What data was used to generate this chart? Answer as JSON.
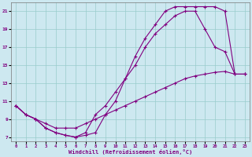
{
  "xlabel": "Windchill (Refroidissement éolien,°C)",
  "bg_color": "#cde8f0",
  "line_color": "#800080",
  "grid_color": "#99cccc",
  "xlim": [
    -0.5,
    23.5
  ],
  "ylim": [
    6.5,
    22
  ],
  "xticks": [
    0,
    1,
    2,
    3,
    4,
    5,
    6,
    7,
    8,
    9,
    10,
    11,
    12,
    13,
    14,
    15,
    16,
    17,
    18,
    19,
    20,
    21,
    22,
    23
  ],
  "yticks": [
    7,
    9,
    11,
    13,
    15,
    17,
    19,
    21
  ],
  "L1_x": [
    0,
    1,
    2,
    3,
    4,
    5,
    6,
    7,
    8,
    9,
    10,
    11,
    12,
    13,
    14,
    15,
    16,
    17,
    18,
    19,
    20,
    21,
    22,
    23
  ],
  "L1_y": [
    10.5,
    9.5,
    9.0,
    8.0,
    7.5,
    7.2,
    7.0,
    7.2,
    7.5,
    9.5,
    11.0,
    13.5,
    16.0,
    18.0,
    19.5,
    21.0,
    21.5,
    21.5,
    21.5,
    21.5,
    21.5,
    21.0,
    14.0,
    14.0
  ],
  "L2_x": [
    0,
    1,
    2,
    3,
    4,
    5,
    6,
    7,
    8,
    9,
    10,
    11,
    12,
    13,
    14,
    15,
    16,
    17,
    18,
    19,
    20,
    21,
    22,
    23
  ],
  "L2_y": [
    10.5,
    9.5,
    9.0,
    8.0,
    7.5,
    7.2,
    7.0,
    7.5,
    9.5,
    10.5,
    12.0,
    13.5,
    15.0,
    17.0,
    18.5,
    19.5,
    20.5,
    21.0,
    21.0,
    19.0,
    17.0,
    16.5,
    14.0,
    14.0
  ],
  "L3_x": [
    0,
    1,
    2,
    3,
    4,
    5,
    6,
    7,
    8,
    9,
    10,
    11,
    12,
    13,
    14,
    15,
    16,
    17,
    18,
    19,
    20,
    21,
    22,
    23
  ],
  "L3_y": [
    10.5,
    9.5,
    9.0,
    8.5,
    8.0,
    8.0,
    8.0,
    8.5,
    9.0,
    9.5,
    10.0,
    10.5,
    11.0,
    11.5,
    12.0,
    12.5,
    13.0,
    13.5,
    13.8,
    14.0,
    14.2,
    14.3,
    14.0,
    14.0
  ]
}
